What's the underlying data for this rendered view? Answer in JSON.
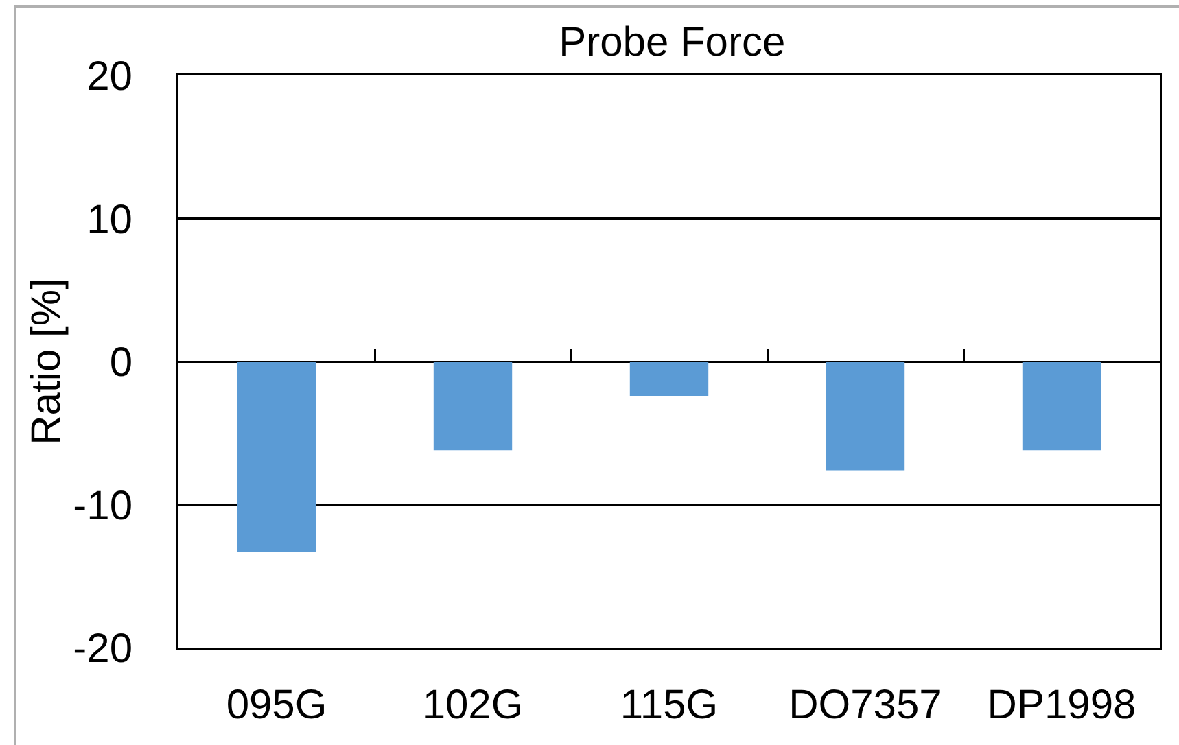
{
  "chart_data": {
    "type": "bar",
    "title": "Probe Force",
    "ylabel": "Ratio [%]",
    "categories": [
      "095G",
      "102G",
      "115G",
      "DO7357",
      "DP1998"
    ],
    "values": [
      -13.3,
      -6.2,
      -2.4,
      -7.6,
      -6.2
    ],
    "color": "#5b9bd5",
    "ylim": [
      -20,
      20
    ],
    "yticks": [
      -20,
      -10,
      0,
      10,
      20
    ],
    "grid": "y"
  }
}
